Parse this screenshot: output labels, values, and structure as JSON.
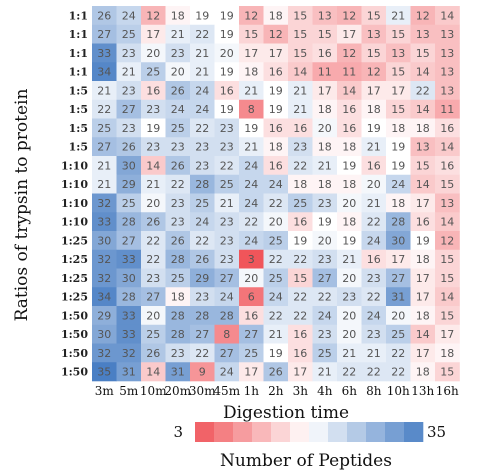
{
  "chart_data": {
    "type": "heatmap",
    "xlabel": "Digestion  time",
    "ylabel": "Ratios of trypsin to protein",
    "colorbar_label": "Number  of  Peptides",
    "colorbar_min": 3,
    "colorbar_max": 35,
    "colorbar_min_label": "3",
    "colorbar_max_label": "35",
    "low_color": "#f0555a",
    "mid_color": "#ffffff",
    "high_color": "#4a7fc4",
    "x_categories": [
      "3m",
      "5m",
      "10m",
      "20m",
      "30m",
      "45m",
      "1h",
      "2h",
      "3h",
      "4h",
      "6h",
      "8h",
      "10h",
      "13h",
      "16h"
    ],
    "y_categories": [
      "1:1",
      "1:1",
      "1:1",
      "1:1",
      "1:5",
      "1:5",
      "1:5",
      "1:5",
      "1:10",
      "1:10",
      "1:10",
      "1:10",
      "1:25",
      "1:25",
      "1:25",
      "1:25",
      "1:50",
      "1:50",
      "1:50",
      "1:50"
    ],
    "values": [
      [
        26,
        24,
        12,
        18,
        19,
        19,
        12,
        18,
        15,
        13,
        12,
        15,
        21,
        12,
        14
      ],
      [
        27,
        25,
        17,
        21,
        22,
        19,
        15,
        12,
        15,
        15,
        17,
        13,
        15,
        13,
        13
      ],
      [
        33,
        23,
        20,
        23,
        21,
        20,
        17,
        17,
        15,
        16,
        12,
        15,
        13,
        15,
        13
      ],
      [
        34,
        21,
        25,
        20,
        21,
        19,
        18,
        16,
        14,
        11,
        11,
        12,
        15,
        14,
        13
      ],
      [
        21,
        23,
        16,
        26,
        24,
        16,
        21,
        19,
        21,
        17,
        14,
        17,
        17,
        22,
        13
      ],
      [
        22,
        27,
        23,
        24,
        24,
        19,
        8,
        19,
        21,
        18,
        16,
        18,
        15,
        14,
        11
      ],
      [
        25,
        23,
        19,
        25,
        22,
        23,
        19,
        16,
        16,
        20,
        16,
        19,
        18,
        18,
        16
      ],
      [
        27,
        26,
        23,
        23,
        23,
        23,
        21,
        18,
        23,
        18,
        18,
        21,
        19,
        13,
        14
      ],
      [
        21,
        30,
        14,
        26,
        23,
        22,
        24,
        16,
        22,
        21,
        19,
        16,
        19,
        15,
        16
      ],
      [
        21,
        29,
        21,
        22,
        28,
        25,
        24,
        24,
        18,
        18,
        18,
        20,
        24,
        14,
        15
      ],
      [
        32,
        25,
        20,
        23,
        25,
        21,
        24,
        22,
        25,
        23,
        20,
        21,
        18,
        17,
        13
      ],
      [
        33,
        28,
        26,
        23,
        24,
        23,
        22,
        20,
        16,
        19,
        18,
        22,
        28,
        16,
        14
      ],
      [
        30,
        27,
        22,
        26,
        22,
        23,
        24,
        25,
        19,
        20,
        19,
        24,
        30,
        19,
        12
      ],
      [
        32,
        33,
        22,
        28,
        26,
        23,
        3,
        22,
        22,
        23,
        21,
        16,
        17,
        18,
        15
      ],
      [
        32,
        30,
        23,
        25,
        29,
        27,
        20,
        25,
        15,
        27,
        20,
        23,
        27,
        17,
        15
      ],
      [
        34,
        28,
        27,
        18,
        23,
        24,
        6,
        24,
        22,
        22,
        23,
        22,
        31,
        17,
        14
      ],
      [
        29,
        33,
        20,
        28,
        28,
        28,
        16,
        22,
        22,
        24,
        20,
        24,
        20,
        18,
        15
      ],
      [
        30,
        33,
        25,
        28,
        27,
        8,
        27,
        21,
        16,
        23,
        20,
        23,
        25,
        14,
        17
      ],
      [
        32,
        32,
        26,
        23,
        22,
        27,
        25,
        19,
        16,
        25,
        21,
        21,
        22,
        17,
        18
      ],
      [
        35,
        31,
        14,
        31,
        9,
        24,
        17,
        26,
        17,
        21,
        22,
        22,
        22,
        18,
        15
      ]
    ]
  }
}
